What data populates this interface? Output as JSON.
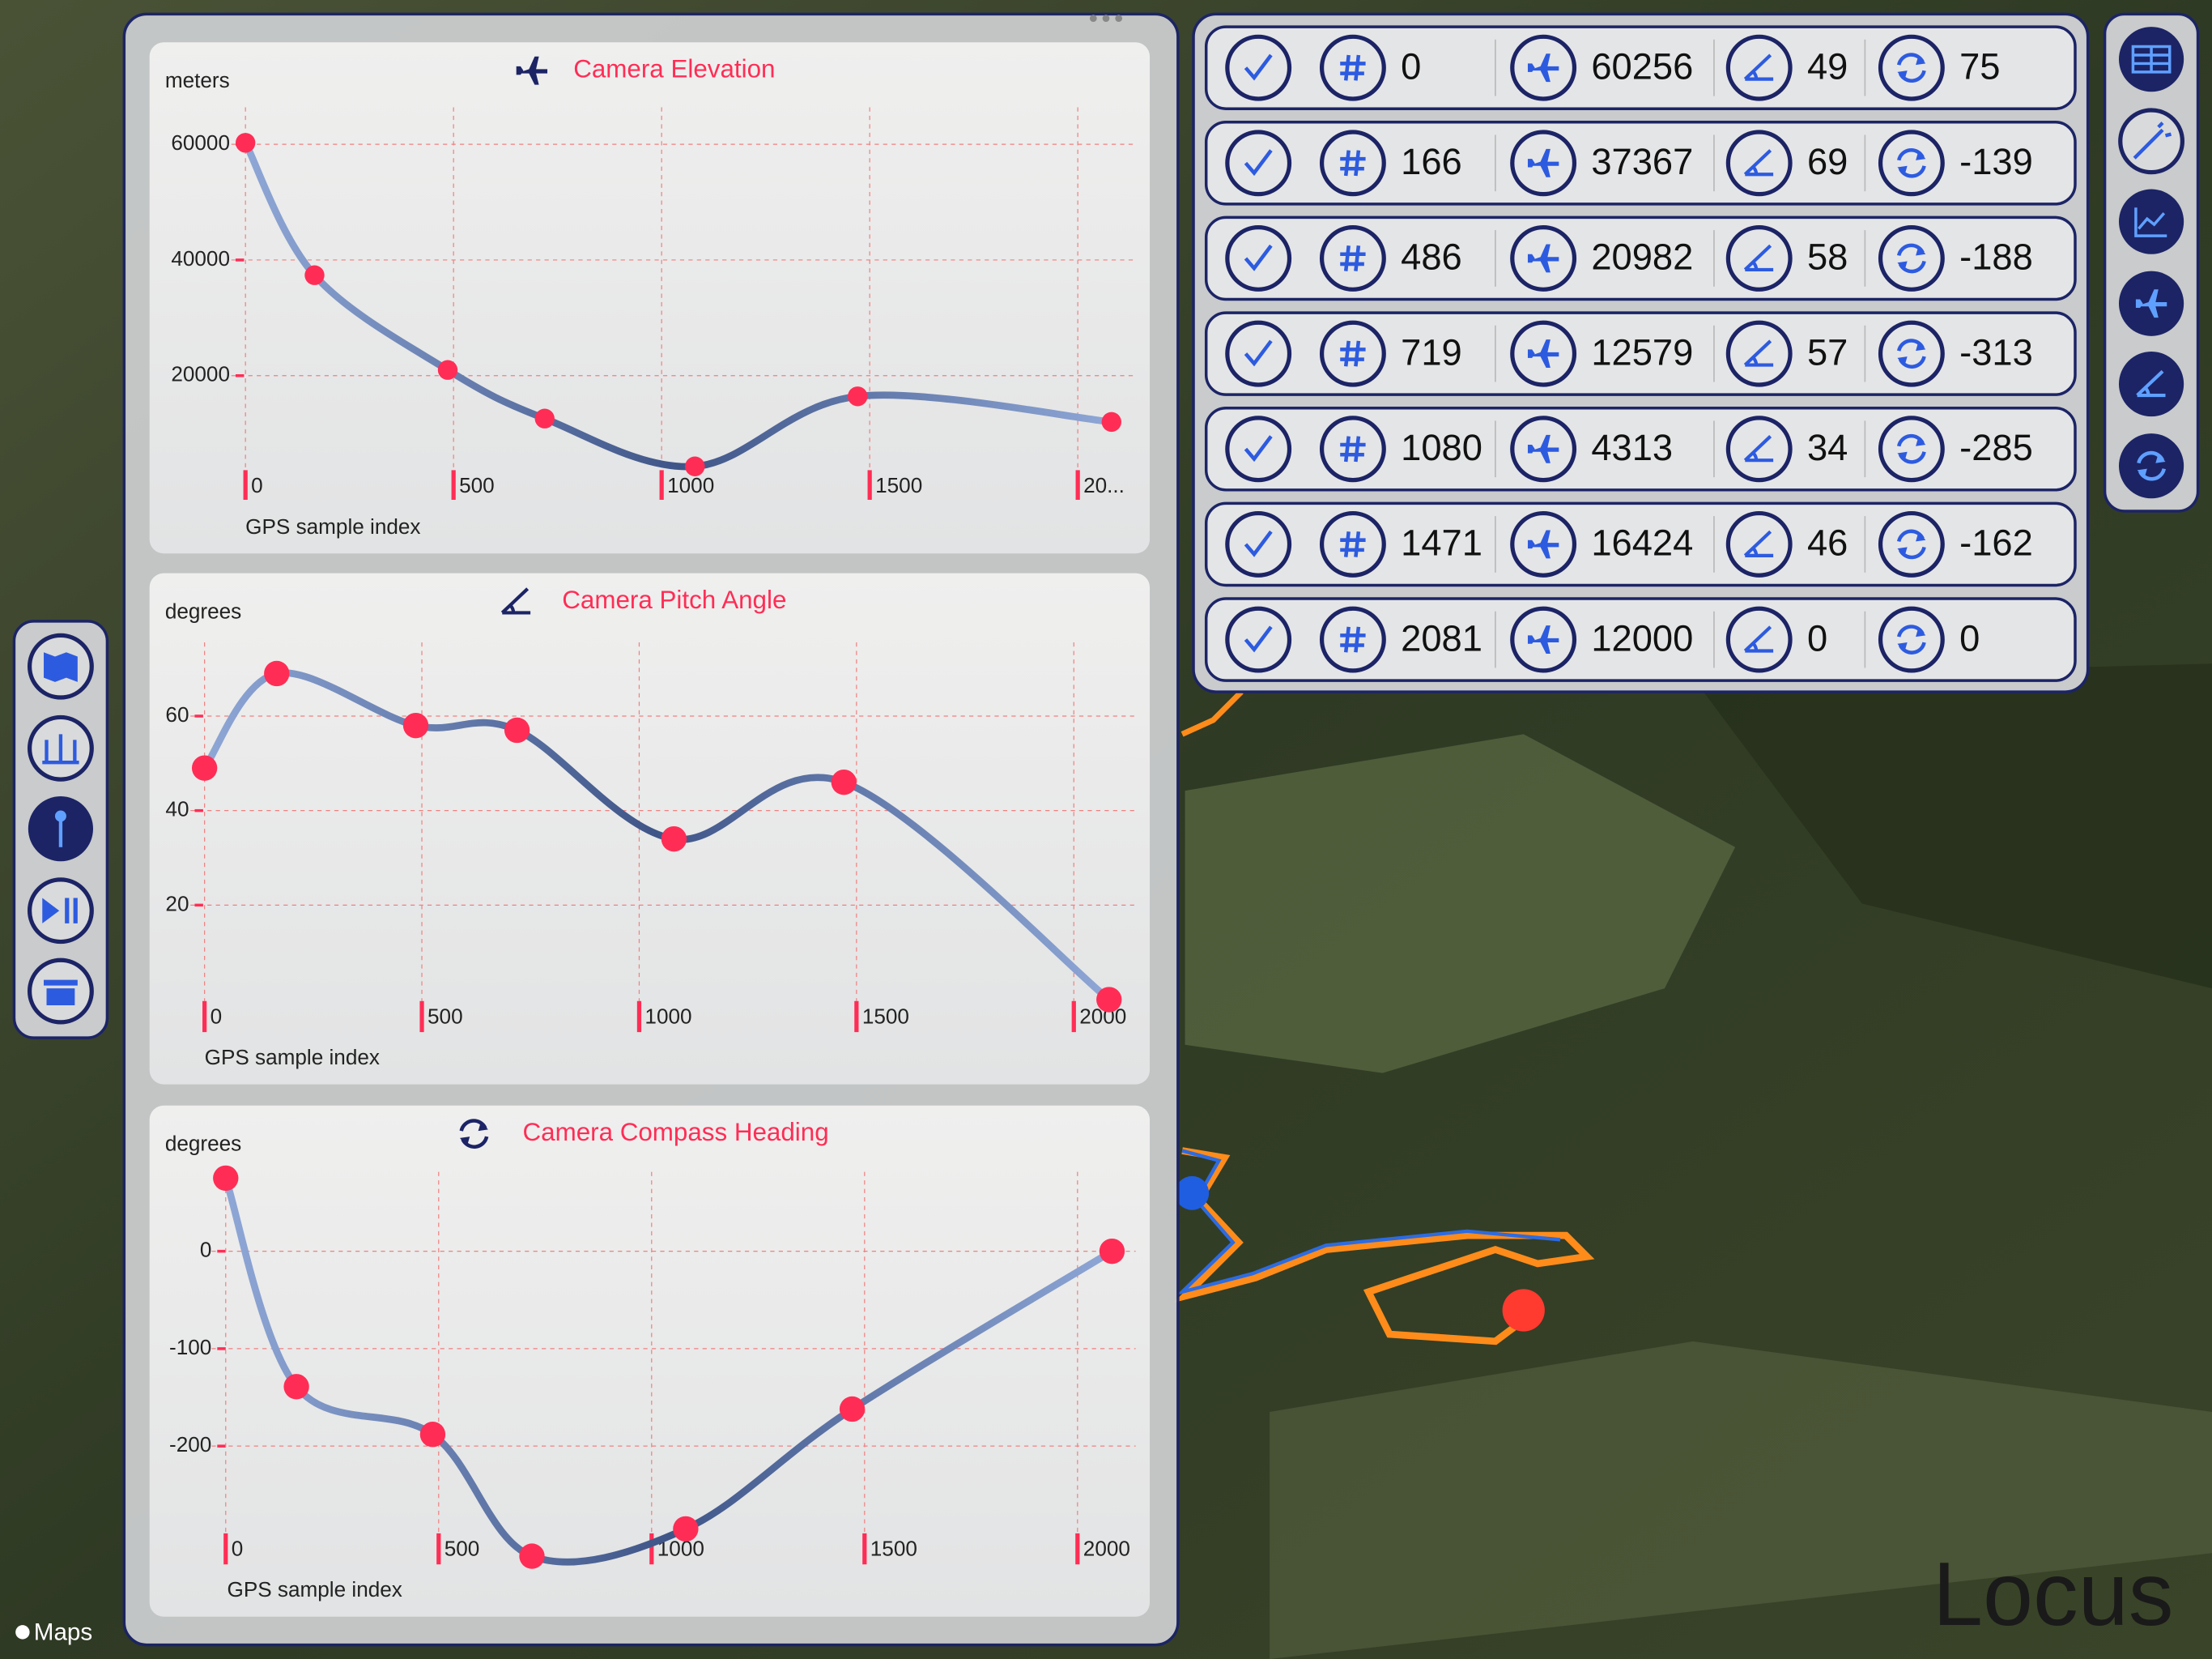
{
  "chart_data": [
    {
      "type": "line",
      "title": "Camera Elevation",
      "ylabel": "meters",
      "xlabel": "GPS sample index",
      "x": [
        0,
        166,
        486,
        719,
        1080,
        1471,
        2081
      ],
      "values": [
        60256,
        37367,
        20982,
        12579,
        4313,
        16424,
        12000
      ],
      "xlim": [
        0,
        2100
      ],
      "ylim": [
        0,
        62000
      ],
      "xticks": [
        0,
        500,
        1000,
        1500,
        {
          "value": 2000,
          "label": "20..."
        }
      ],
      "yticks": [
        20000,
        40000,
        60000
      ],
      "grid": true,
      "color": "#4a5f8f",
      "marker_color": "#ff2d55"
    },
    {
      "type": "line",
      "title": "Camera Pitch Angle",
      "ylabel": "degrees",
      "xlabel": "GPS sample index",
      "x": [
        0,
        166,
        486,
        719,
        1080,
        1471,
        2081
      ],
      "values": [
        49,
        69,
        58,
        57,
        34,
        46,
        0
      ],
      "xlim": [
        0,
        2100
      ],
      "ylim": [
        0,
        72
      ],
      "xticks": [
        0,
        500,
        1000,
        1500,
        2000
      ],
      "yticks": [
        20,
        40,
        60
      ],
      "grid": true,
      "color": "#4a5f8f",
      "marker_color": "#ff2d55"
    },
    {
      "type": "line",
      "title": "Camera Compass Heading",
      "ylabel": "degrees",
      "xlabel": "GPS sample index",
      "x": [
        0,
        166,
        486,
        719,
        1080,
        1471,
        2081
      ],
      "values": [
        75,
        -139,
        -188,
        -313,
        -285,
        -162,
        0
      ],
      "xlim": [
        0,
        2100
      ],
      "ylim": [
        -320,
        80
      ],
      "xticks": [
        0,
        500,
        1000,
        1500,
        2000
      ],
      "yticks": [
        -200,
        -100,
        0
      ],
      "grid": true,
      "color": "#4a5f8f",
      "marker_color": "#ff2d55"
    }
  ],
  "table": {
    "rows": [
      [
        0,
        60256,
        49,
        75
      ],
      [
        166,
        37367,
        69,
        -139
      ],
      [
        486,
        20982,
        58,
        -188
      ],
      [
        719,
        12579,
        57,
        -313
      ],
      [
        1080,
        4313,
        34,
        -285
      ],
      [
        1471,
        16424,
        46,
        -162
      ],
      [
        2081,
        12000,
        0,
        0
      ]
    ]
  },
  "map": {
    "attribution": "Maps",
    "watermark": "Locus"
  }
}
